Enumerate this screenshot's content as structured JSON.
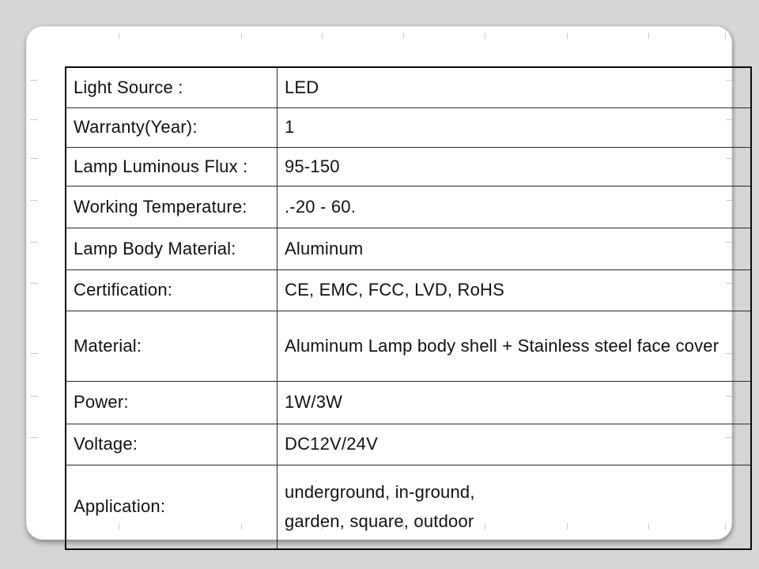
{
  "page": {
    "kind": "product-specification-sheet"
  },
  "colors": {
    "background": "#d6d6d6",
    "card": "#ffffff",
    "table_outer_border": "#0a0a0a",
    "table_inner_border": "#2a2a2a",
    "text": "#111111",
    "gridline_stub": "#8c9ec6"
  },
  "spec_table": {
    "rows": [
      {
        "label": "Light Source :",
        "value": "LED"
      },
      {
        "label": "Warranty(Year):",
        "value": "1"
      },
      {
        "label": "Lamp Luminous Flux :",
        "value": "95-150"
      },
      {
        "label": "Working Temperature:",
        "value": ".-20 - 60."
      },
      {
        "label": "Lamp Body Material:",
        "value": "Aluminum"
      },
      {
        "label": "Certification:",
        "value": "CE, EMC, FCC, LVD, RoHS"
      },
      {
        "label": "Material:",
        "value": "Aluminum Lamp body shell + Stainless steel face cover"
      },
      {
        "label": "Power:",
        "value": "1W/3W"
      },
      {
        "label": "Voltage:",
        "value": "DC12V/24V"
      },
      {
        "label": "Application:",
        "value": [
          "underground, in-ground,",
          "garden, square, outdoor"
        ]
      }
    ]
  }
}
